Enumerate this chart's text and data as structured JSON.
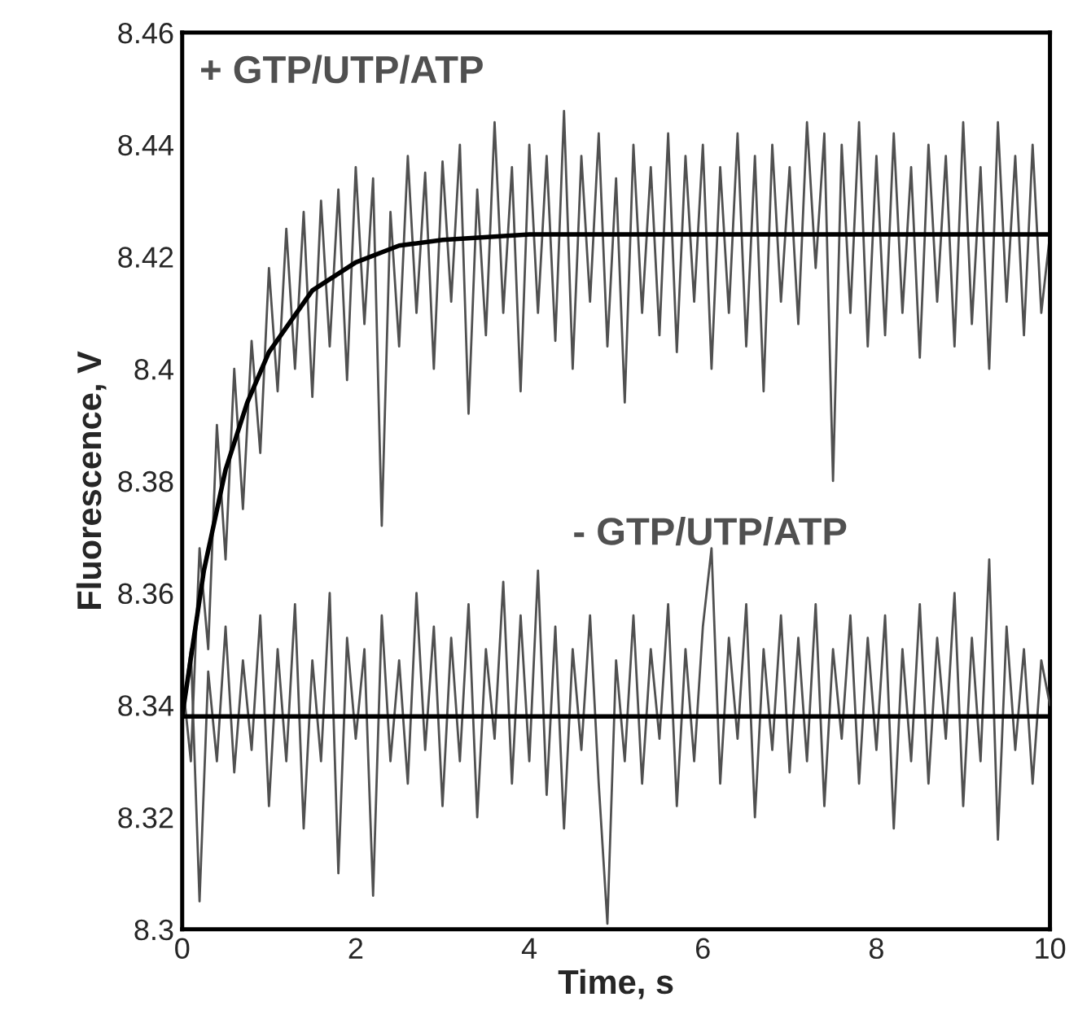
{
  "chart_data": {
    "type": "line",
    "xlabel": "Time, s",
    "ylabel": "Fluorescence, V",
    "xlim": [
      0,
      10
    ],
    "xticks": [
      0,
      2,
      4,
      6,
      8,
      10
    ],
    "ylim": [
      8.3,
      8.46
    ],
    "yticks": [
      8.3,
      8.32,
      8.34,
      8.36,
      8.38,
      8.4,
      8.42,
      8.44,
      8.46
    ],
    "grid": false,
    "legend": false,
    "marker": "none",
    "line_style": "solid",
    "annotations": [
      "+ GTP/UTP/ATP",
      "- GTP/UTP/ATP"
    ],
    "series": [
      {
        "color": "#505050",
        "x": [
          0,
          0.1,
          0.2,
          0.3,
          0.4,
          0.5,
          0.6,
          0.7,
          0.8,
          0.9,
          1,
          1.1,
          1.2,
          1.3,
          1.4,
          1.5,
          1.6,
          1.7,
          1.8,
          1.9,
          2,
          2.1,
          2.2,
          2.3,
          2.4,
          2.5,
          2.6,
          2.7,
          2.8,
          2.9,
          3,
          3.1,
          3.2,
          3.3,
          3.4,
          3.5,
          3.6,
          3.7,
          3.8,
          3.9,
          4,
          4.1,
          4.2,
          4.3,
          4.4,
          4.5,
          4.6,
          4.7,
          4.8,
          4.9,
          5,
          5.1,
          5.2,
          5.3,
          5.4,
          5.5,
          5.6,
          5.7,
          5.8,
          5.9,
          6,
          6.1,
          6.2,
          6.3,
          6.4,
          6.5,
          6.6,
          6.7,
          6.8,
          6.9,
          7,
          7.1,
          7.2,
          7.3,
          7.4,
          7.5,
          7.6,
          7.7,
          7.8,
          7.9,
          8,
          8.1,
          8.2,
          8.3,
          8.4,
          8.5,
          8.6,
          8.7,
          8.8,
          8.9,
          9,
          9.1,
          9.2,
          9.3,
          9.4,
          9.5,
          9.6,
          9.7,
          9.8,
          9.9,
          10
        ],
        "values": [
          8.345,
          8.33,
          8.368,
          8.35,
          8.39,
          8.366,
          8.4,
          8.375,
          8.405,
          8.385,
          8.418,
          8.396,
          8.425,
          8.4,
          8.428,
          8.395,
          8.43,
          8.404,
          8.432,
          8.398,
          8.436,
          8.408,
          8.434,
          8.372,
          8.428,
          8.404,
          8.438,
          8.41,
          8.435,
          8.4,
          8.437,
          8.412,
          8.44,
          8.392,
          8.432,
          8.406,
          8.444,
          8.41,
          8.436,
          8.396,
          8.44,
          8.41,
          8.438,
          8.405,
          8.446,
          8.4,
          8.438,
          8.412,
          8.442,
          8.404,
          8.434,
          8.394,
          8.44,
          8.41,
          8.436,
          8.406,
          8.442,
          8.403,
          8.438,
          8.412,
          8.44,
          8.4,
          8.436,
          8.41,
          8.442,
          8.404,
          8.438,
          8.396,
          8.44,
          8.412,
          8.436,
          8.408,
          8.444,
          8.418,
          8.442,
          8.38,
          8.44,
          8.41,
          8.444,
          8.404,
          8.438,
          8.406,
          8.442,
          8.41,
          8.436,
          8.402,
          8.44,
          8.412,
          8.438,
          8.404,
          8.444,
          8.408,
          8.436,
          8.4,
          8.444,
          8.412,
          8.438,
          8.406,
          8.44,
          8.41,
          8.424
        ]
      },
      {
        "color": "#505050",
        "x": [
          0,
          0.1,
          0.2,
          0.3,
          0.4,
          0.5,
          0.6,
          0.7,
          0.8,
          0.9,
          1,
          1.1,
          1.2,
          1.3,
          1.4,
          1.5,
          1.6,
          1.7,
          1.8,
          1.9,
          2,
          2.1,
          2.2,
          2.3,
          2.4,
          2.5,
          2.6,
          2.7,
          2.8,
          2.9,
          3,
          3.1,
          3.2,
          3.3,
          3.4,
          3.5,
          3.6,
          3.7,
          3.8,
          3.9,
          4,
          4.1,
          4.2,
          4.3,
          4.4,
          4.5,
          4.6,
          4.7,
          4.8,
          4.9,
          5,
          5.1,
          5.2,
          5.3,
          5.4,
          5.5,
          5.6,
          5.7,
          5.8,
          5.9,
          6,
          6.1,
          6.2,
          6.3,
          6.4,
          6.5,
          6.6,
          6.7,
          6.8,
          6.9,
          7,
          7.1,
          7.2,
          7.3,
          7.4,
          7.5,
          7.6,
          7.7,
          7.8,
          7.9,
          8,
          8.1,
          8.2,
          8.3,
          8.4,
          8.5,
          8.6,
          8.7,
          8.8,
          8.9,
          9,
          9.1,
          9.2,
          9.3,
          9.4,
          9.5,
          9.6,
          9.7,
          9.8,
          9.9,
          10
        ],
        "values": [
          8.338,
          8.35,
          8.305,
          8.346,
          8.33,
          8.354,
          8.328,
          8.348,
          8.332,
          8.356,
          8.322,
          8.35,
          8.33,
          8.358,
          8.318,
          8.348,
          8.33,
          8.36,
          8.31,
          8.352,
          8.334,
          8.35,
          8.306,
          8.356,
          8.33,
          8.348,
          8.326,
          8.36,
          8.332,
          8.354,
          8.322,
          8.352,
          8.33,
          8.358,
          8.32,
          8.35,
          8.334,
          8.362,
          8.326,
          8.356,
          8.33,
          8.364,
          8.324,
          8.354,
          8.318,
          8.35,
          8.332,
          8.356,
          8.326,
          8.301,
          8.348,
          8.33,
          8.356,
          8.326,
          8.35,
          8.334,
          8.358,
          8.322,
          8.35,
          8.33,
          8.354,
          8.368,
          8.326,
          8.352,
          8.334,
          8.358,
          8.32,
          8.35,
          8.332,
          8.356,
          8.328,
          8.352,
          8.33,
          8.358,
          8.322,
          8.35,
          8.334,
          8.356,
          8.326,
          8.352,
          8.332,
          8.356,
          8.318,
          8.35,
          8.33,
          8.358,
          8.326,
          8.352,
          8.334,
          8.36,
          8.322,
          8.352,
          8.33,
          8.366,
          8.316,
          8.354,
          8.332,
          8.35,
          8.326,
          8.348,
          8.34
        ]
      },
      {
        "color": "#000000",
        "x": [
          0,
          0.25,
          0.5,
          0.75,
          1,
          1.5,
          2,
          2.5,
          3,
          4,
          6,
          10
        ],
        "values": [
          8.338,
          8.364,
          8.382,
          8.394,
          8.403,
          8.414,
          8.419,
          8.422,
          8.423,
          8.424,
          8.424,
          8.424
        ]
      },
      {
        "color": "#000000",
        "x": [
          0,
          10
        ],
        "values": [
          8.338,
          8.338
        ]
      }
    ]
  }
}
